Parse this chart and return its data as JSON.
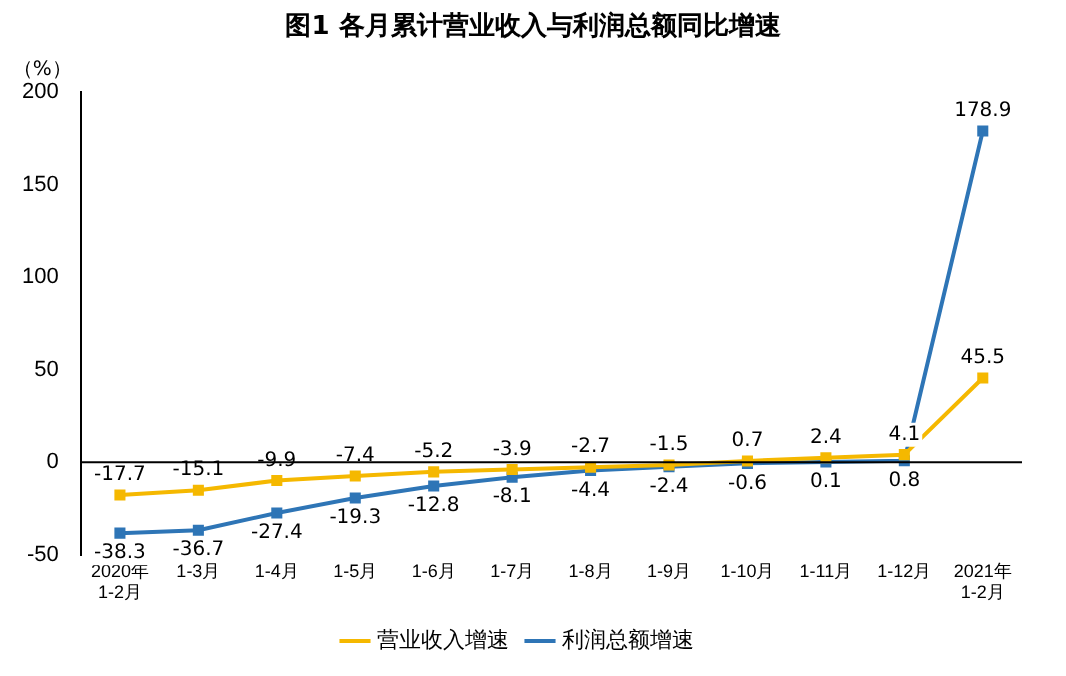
{
  "chart_data": {
    "type": "line",
    "title": "图1  各月累计营业收入与利润总额同比增速",
    "ylabel": "（%）",
    "categories": [
      "2020年\n1-2月",
      "1-3月",
      "1-4月",
      "1-5月",
      "1-6月",
      "1-7月",
      "1-8月",
      "1-9月",
      "1-10月",
      "1-11月",
      "1-12月",
      "2021年\n1-2月"
    ],
    "series": [
      {
        "name": "营业收入增速",
        "color": "#f5b800",
        "values": [
          -17.7,
          -15.1,
          -9.9,
          -7.4,
          -5.2,
          -3.9,
          -2.7,
          -1.5,
          0.7,
          2.4,
          4.1,
          45.5
        ]
      },
      {
        "name": "利润总额增速",
        "color": "#2e75b6",
        "values": [
          -38.3,
          -36.7,
          -27.4,
          -19.3,
          -12.8,
          -8.1,
          -4.4,
          -2.4,
          -0.6,
          0.1,
          0.8,
          178.9
        ]
      }
    ],
    "ylim": [
      -50,
      200
    ],
    "yticks": [
      -50,
      0,
      50,
      100,
      150,
      200
    ],
    "grid": false,
    "legend": "bottom",
    "marker": "square",
    "data_labels": true,
    "ref_lines": [
      {
        "axis": "y",
        "value": 0
      }
    ]
  }
}
